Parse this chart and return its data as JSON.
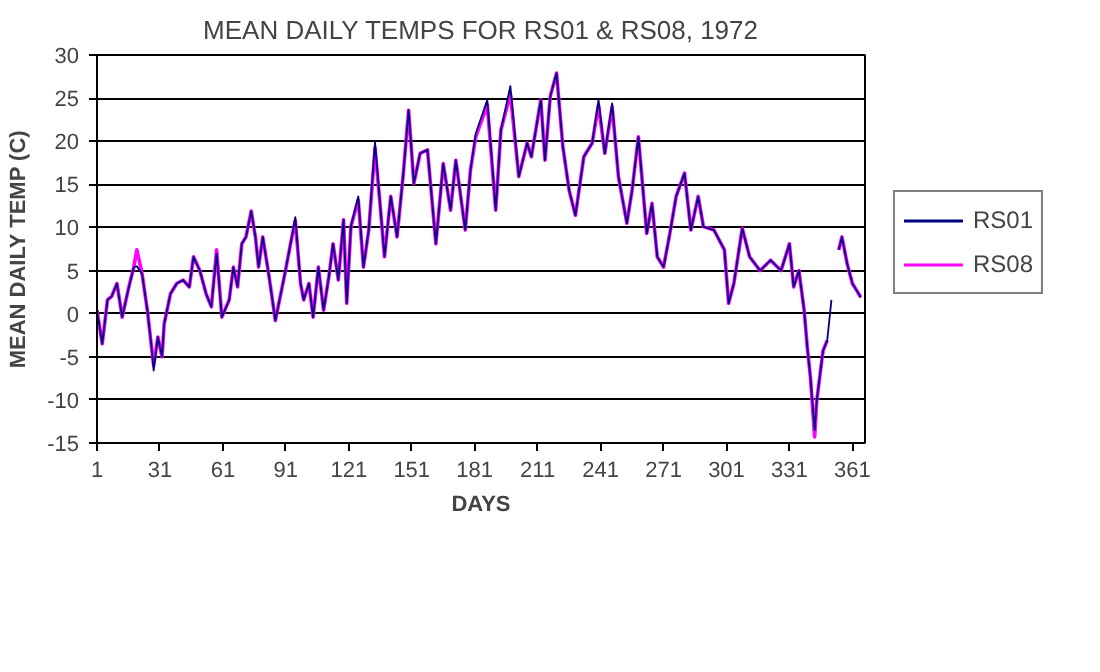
{
  "chart_data": {
    "type": "line",
    "title": "MEAN DAILY TEMPS FOR RS01 & RS08, 1972",
    "xlabel": "DAYS",
    "ylabel": "MEAN DAILY TEMP (C)",
    "x": [
      1,
      3.5,
      6,
      8,
      10.5,
      13,
      16,
      18.5,
      20,
      22.5,
      25,
      27,
      28,
      30,
      32,
      33,
      36,
      39,
      42,
      45,
      47,
      50,
      53,
      55.5,
      58,
      60.5,
      64,
      66,
      68,
      70,
      72,
      74.5,
      76.5,
      78,
      80,
      83,
      86,
      88,
      90.5,
      93,
      95.5,
      98,
      99.5,
      102,
      104,
      106.5,
      109,
      111.5,
      113.5,
      116,
      118.5,
      120,
      122,
      125.5,
      128,
      130.5,
      133.5,
      136,
      138,
      141,
      144,
      147,
      149.5,
      152,
      155,
      158.5,
      162.5,
      166,
      169.5,
      172,
      176.5,
      179,
      181.5,
      187,
      191,
      193.5,
      198,
      202,
      206,
      208,
      212.5,
      214.5,
      217,
      220,
      223,
      226,
      229,
      233,
      237,
      240,
      243,
      246.5,
      249.5,
      253.5,
      256,
      259,
      263,
      265.5,
      268,
      271,
      274,
      277,
      281,
      284,
      287.5,
      290,
      295,
      300,
      302,
      304.5,
      308.5,
      312,
      317,
      322,
      327,
      331,
      333,
      335.5,
      338,
      339.5,
      341,
      343,
      344,
      347,
      349,
      351,
      352.5,
      354.5,
      356,
      358.5,
      361,
      363,
      365
    ],
    "series": [
      {
        "name": "RS01",
        "color": "#000080",
        "values": [
          0.4,
          -3.5,
          1.6,
          2,
          3.5,
          -0.4,
          2.9,
          5.4,
          5.5,
          4.6,
          0.4,
          -3.9,
          -6.6,
          -2.7,
          -5,
          -1.2,
          2.3,
          3.5,
          3.9,
          3.1,
          6.6,
          5,
          2.3,
          0.8,
          7,
          -0.4,
          1.6,
          5.4,
          3.1,
          8.1,
          8.9,
          11.9,
          8.9,
          5.4,
          8.9,
          4.3,
          -0.8,
          1.6,
          4.6,
          7.8,
          11.2,
          3.5,
          1.6,
          3.5,
          -0.4,
          5.4,
          0.4,
          4.3,
          8.1,
          3.9,
          10.9,
          1.2,
          10.1,
          13.6,
          5.4,
          9.7,
          19.9,
          12.4,
          6.6,
          13.6,
          8.9,
          16.3,
          23.6,
          15.1,
          18.6,
          19,
          8.1,
          17.4,
          12,
          17.8,
          9.7,
          16.7,
          20.9,
          24.8,
          12,
          21.3,
          26.4,
          15.9,
          19.8,
          18.2,
          24.8,
          17.8,
          25.2,
          27.9,
          19.4,
          14.3,
          11.4,
          18.2,
          19.8,
          24.8,
          18.6,
          24.4,
          15.9,
          10.5,
          14.3,
          20.5,
          9.3,
          12.8,
          6.6,
          5.4,
          9.3,
          13.6,
          16.3,
          9.7,
          13.6,
          10.1,
          9.7,
          7.4,
          1.2,
          3.5,
          9.9,
          6.6,
          5,
          6.2,
          5,
          8.1,
          3.1,
          5,
          0.4,
          -3.9,
          -7.4,
          -13.5,
          -10.1,
          -4.3,
          -3.1,
          1.6,
          null,
          7.4,
          8.9,
          5.8,
          3.5,
          2.7,
          1.9
        ]
      },
      {
        "name": "RS08",
        "color": "#ff00ff",
        "values": [
          0.4,
          -3.5,
          1.6,
          2,
          3.5,
          -0.4,
          2.9,
          5.4,
          7.4,
          4.6,
          0.4,
          -3.9,
          -6,
          -2.7,
          -5,
          -1.2,
          2.3,
          3.5,
          3.9,
          3.1,
          6.6,
          5,
          2.3,
          0.8,
          7.4,
          -0.4,
          1.6,
          5.4,
          3.1,
          8.1,
          8.9,
          11.9,
          8.9,
          5.4,
          8.9,
          4.3,
          -0.8,
          1.6,
          4.6,
          7.8,
          10.8,
          3.5,
          1.6,
          3.5,
          -0.4,
          5.4,
          0.4,
          4.3,
          8.1,
          3.9,
          10.9,
          1.2,
          10.1,
          13.2,
          5.4,
          9.7,
          19.2,
          12.4,
          6.6,
          13.6,
          8.9,
          16.3,
          23.6,
          15.1,
          18.6,
          19,
          8.1,
          17.4,
          12,
          17.8,
          9.7,
          16.7,
          20.5,
          24.2,
          12,
          21.3,
          25.5,
          15.9,
          19.8,
          18.2,
          24.8,
          17.8,
          25.2,
          27.9,
          19.4,
          14.3,
          11.4,
          18.2,
          19.8,
          24.2,
          18.6,
          24,
          15.9,
          10.5,
          14.3,
          20.5,
          9.3,
          12.8,
          6.6,
          5.4,
          9.3,
          13.6,
          16.3,
          9.7,
          13.6,
          10.1,
          9.7,
          7.4,
          1.2,
          3.5,
          9.9,
          6.6,
          5,
          6.2,
          5,
          8.1,
          3.1,
          5,
          0.4,
          -3.9,
          -7.4,
          -14.3,
          -10.1,
          -4.3,
          -3.1,
          null,
          null,
          7.4,
          8.9,
          5.8,
          3.5,
          2.7,
          1.9
        ]
      }
    ],
    "xlim": [
      1,
      367
    ],
    "xticks": [
      1,
      31,
      61,
      91,
      121,
      151,
      181,
      211,
      241,
      271,
      301,
      331,
      361
    ],
    "ylim": [
      -15,
      30
    ],
    "yticks": [
      -15,
      -10,
      -5,
      0,
      5,
      10,
      15,
      20,
      25,
      30
    ],
    "grid": "y",
    "legend": "right",
    "marker": "none",
    "line_style": "solid"
  }
}
